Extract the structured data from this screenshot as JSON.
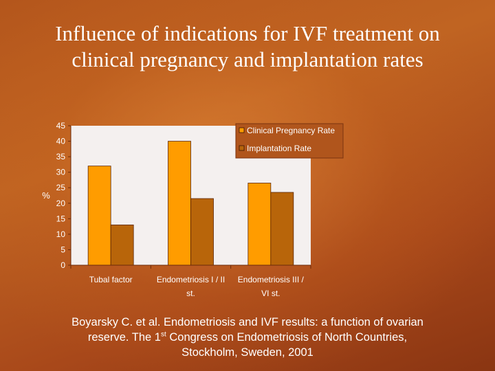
{
  "title": {
    "line1": "Influence of indications for IVF treatment on",
    "line2": "clinical pregnancy and implantation rates"
  },
  "chart_data": {
    "type": "bar",
    "categories": [
      [
        "Tubal factor"
      ],
      [
        "Endometriosis I / II",
        "st."
      ],
      [
        "Endometriosis III /",
        "VI st."
      ]
    ],
    "series": [
      {
        "name": "Clinical Pregnancy Rate",
        "values": [
          32,
          40,
          26.5
        ],
        "color": "#ff9c00"
      },
      {
        "name": "Implantation Rate",
        "values": [
          13,
          21.5,
          23.5
        ],
        "color": "#b8650a"
      }
    ],
    "ylabel": "%",
    "ylim": [
      0,
      45
    ],
    "yticks": [
      0,
      5,
      10,
      15,
      20,
      25,
      30,
      35,
      40,
      45
    ],
    "legend": "top-right",
    "grid": false,
    "plot_background": "#f4f0ef"
  },
  "citation": {
    "line1": "Boyarsky C. et al. Endometriosis and IVF results: a function of ovarian",
    "line2_before": "reserve.  The 1",
    "line2_sup": "st",
    "line2_after": " Congress on Endometriosis of North Countries,",
    "line3": "Stockholm, Sweden, 2001"
  }
}
